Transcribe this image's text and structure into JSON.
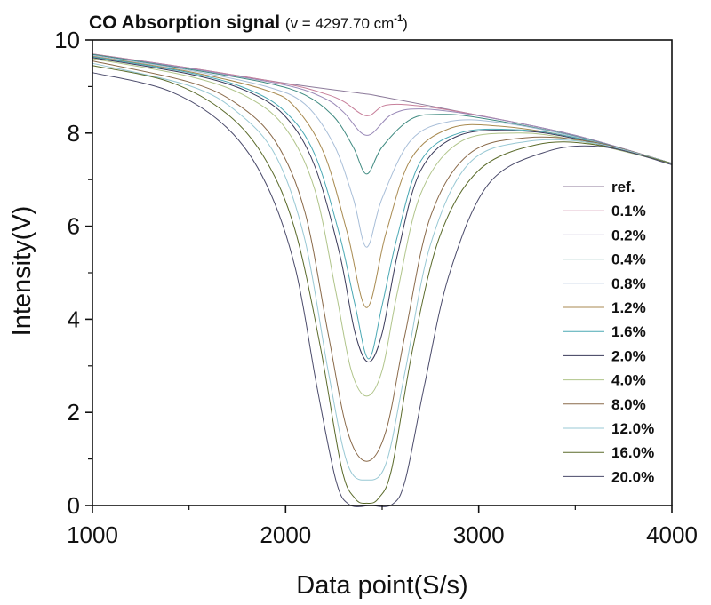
{
  "chart_data": {
    "type": "line",
    "title_main": "CO Absorption signal",
    "title_open": "(",
    "title_nu": "v = 4297.70 cm",
    "title_exp": "-1",
    "title_close": ")",
    "xlabel": "Data point(S/s)",
    "ylabel": "Intensity(V)",
    "xlim": [
      1000,
      4000
    ],
    "ylim": [
      0,
      10
    ],
    "xticks": [
      "1000",
      "2000",
      "3000",
      "4000"
    ],
    "yticks": [
      "0",
      "2",
      "4",
      "6",
      "8",
      "10"
    ],
    "x_minor_step": 500,
    "y_minor_step": 1,
    "legend_position": "right",
    "series": [
      {
        "name": "ref.",
        "color": "#8c7a9a",
        "x": [
          1000,
          1500,
          2000,
          2400,
          2500,
          3000,
          3500,
          4000
        ],
        "y": [
          9.7,
          9.4,
          9.07,
          8.85,
          8.78,
          8.38,
          7.95,
          7.35
        ]
      },
      {
        "name": "0.1%",
        "color": "#c77f9a",
        "x": [
          1000,
          1500,
          2000,
          2200,
          2300,
          2420,
          2520,
          2700,
          3000,
          3500,
          4000
        ],
        "y": [
          9.7,
          9.4,
          9.06,
          8.85,
          8.68,
          8.37,
          8.6,
          8.58,
          8.38,
          7.95,
          7.35
        ]
      },
      {
        "name": "0.2%",
        "color": "#9a8ab8",
        "x": [
          1000,
          1500,
          2000,
          2200,
          2300,
          2420,
          2550,
          2700,
          3000,
          3500,
          4000
        ],
        "y": [
          9.69,
          9.39,
          9.03,
          8.75,
          8.45,
          7.95,
          8.4,
          8.52,
          8.37,
          7.95,
          7.35
        ]
      },
      {
        "name": "0.4%",
        "color": "#3f8a80",
        "x": [
          1000,
          1500,
          1900,
          2100,
          2250,
          2350,
          2420,
          2500,
          2650,
          2800,
          3000,
          3500,
          4000
        ],
        "y": [
          9.69,
          9.37,
          9.08,
          8.82,
          8.35,
          7.7,
          7.12,
          7.7,
          8.3,
          8.4,
          8.33,
          7.93,
          7.35
        ]
      },
      {
        "name": "0.8%",
        "color": "#a8bed8",
        "x": [
          1000,
          1500,
          1900,
          2100,
          2250,
          2350,
          2420,
          2500,
          2650,
          2850,
          3100,
          3500,
          4000
        ],
        "y": [
          9.67,
          9.35,
          9.0,
          8.62,
          7.75,
          6.6,
          5.55,
          6.6,
          7.85,
          8.25,
          8.23,
          7.92,
          7.35
        ]
      },
      {
        "name": "1.2%",
        "color": "#a88a50",
        "x": [
          1000,
          1500,
          1900,
          2050,
          2200,
          2320,
          2420,
          2520,
          2650,
          2850,
          3100,
          3500,
          4000
        ],
        "y": [
          9.65,
          9.32,
          8.92,
          8.55,
          7.55,
          5.85,
          4.25,
          5.85,
          7.45,
          8.1,
          8.15,
          7.9,
          7.35
        ]
      },
      {
        "name": "1.6%",
        "color": "#4aa8b4",
        "x": [
          1000,
          1500,
          1800,
          2000,
          2150,
          2280,
          2360,
          2430,
          2500,
          2580,
          2700,
          2900,
          3200,
          3500,
          4000
        ],
        "y": [
          9.64,
          9.3,
          8.95,
          8.45,
          7.55,
          5.8,
          4.3,
          3.15,
          4.3,
          5.8,
          7.4,
          8.0,
          8.07,
          7.9,
          7.35
        ]
      },
      {
        "name": "2.0%",
        "color": "#3a3a5a",
        "x": [
          1000,
          1500,
          1800,
          2000,
          2150,
          2280,
          2360,
          2430,
          2500,
          2580,
          2700,
          2900,
          3200,
          3500,
          4000
        ],
        "y": [
          9.62,
          9.27,
          8.9,
          8.35,
          7.3,
          5.4,
          3.7,
          3.08,
          3.7,
          5.4,
          7.2,
          7.95,
          8.05,
          7.88,
          7.35
        ]
      },
      {
        "name": "4.0%",
        "color": "#b0c48a",
        "x": [
          1000,
          1500,
          1800,
          2000,
          2150,
          2260,
          2340,
          2420,
          2500,
          2580,
          2700,
          2900,
          3200,
          3500,
          4000
        ],
        "y": [
          9.6,
          9.22,
          8.78,
          8.1,
          6.8,
          4.6,
          2.9,
          2.35,
          2.9,
          4.6,
          6.7,
          7.8,
          8.0,
          7.85,
          7.35
        ]
      },
      {
        "name": "8.0%",
        "color": "#8a6a4a",
        "x": [
          1000,
          1500,
          1750,
          1950,
          2100,
          2220,
          2320,
          2420,
          2520,
          2620,
          2750,
          2950,
          3250,
          3600,
          4000
        ],
        "y": [
          9.55,
          9.1,
          8.62,
          7.8,
          6.3,
          3.7,
          1.6,
          0.95,
          1.6,
          3.7,
          6.2,
          7.55,
          7.9,
          7.8,
          7.35
        ]
      },
      {
        "name": "12.0%",
        "color": "#98c8d4",
        "x": [
          1000,
          1500,
          1750,
          1950,
          2100,
          2220,
          2320,
          2420,
          2520,
          2620,
          2750,
          2950,
          3250,
          3600,
          4000
        ],
        "y": [
          9.5,
          9.02,
          8.45,
          7.5,
          5.7,
          2.9,
          0.9,
          0.55,
          0.9,
          2.9,
          5.6,
          7.35,
          7.82,
          7.78,
          7.35
        ]
      },
      {
        "name": "16.0%",
        "color": "#5a6a2a",
        "x": [
          1000,
          1400,
          1700,
          1900,
          2050,
          2180,
          2290,
          2360,
          2420,
          2480,
          2550,
          2660,
          2800,
          3000,
          3300,
          3600,
          4000
        ],
        "y": [
          9.45,
          9.1,
          8.4,
          7.4,
          5.9,
          3.4,
          0.8,
          0.15,
          0.05,
          0.15,
          0.8,
          3.4,
          5.8,
          7.2,
          7.75,
          7.75,
          7.35
        ]
      },
      {
        "name": "20.0%",
        "color": "#4a4a6a",
        "x": [
          1000,
          1400,
          1700,
          1900,
          2050,
          2160,
          2260,
          2330,
          2440,
          2550,
          2620,
          2720,
          2850,
          3050,
          3350,
          3650,
          4000
        ],
        "y": [
          9.3,
          8.9,
          8.1,
          6.9,
          5.1,
          2.6,
          0.55,
          0.02,
          0.0,
          0.02,
          0.55,
          2.6,
          5.0,
          6.9,
          7.6,
          7.7,
          7.32
        ]
      }
    ]
  }
}
